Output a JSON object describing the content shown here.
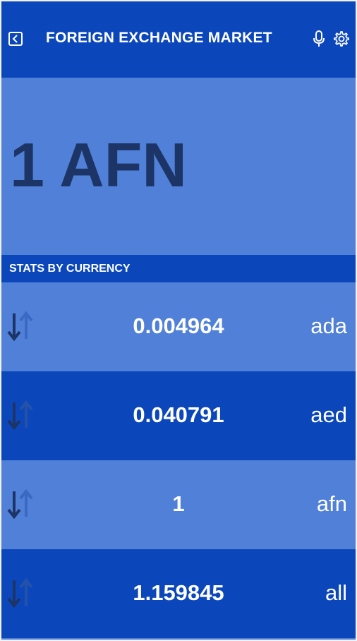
{
  "header": {
    "title": "FOREIGN EXCHANGE MARKET",
    "back_icon": "back-icon",
    "mic_icon": "microphone-icon",
    "settings_icon": "gear-icon"
  },
  "hero": {
    "amount_label": "1 AFN"
  },
  "section": {
    "title": "STATS BY CURRENCY"
  },
  "rates": [
    {
      "value": "0.004964",
      "code": "ada"
    },
    {
      "value": "0.040791",
      "code": "aed"
    },
    {
      "value": "1",
      "code": "afn"
    },
    {
      "value": "1.159845",
      "code": "all"
    }
  ],
  "colors": {
    "primary": "#0b47bb",
    "light": "#5080d8",
    "hero_text": "#1c3566",
    "text": "#ffffff"
  }
}
